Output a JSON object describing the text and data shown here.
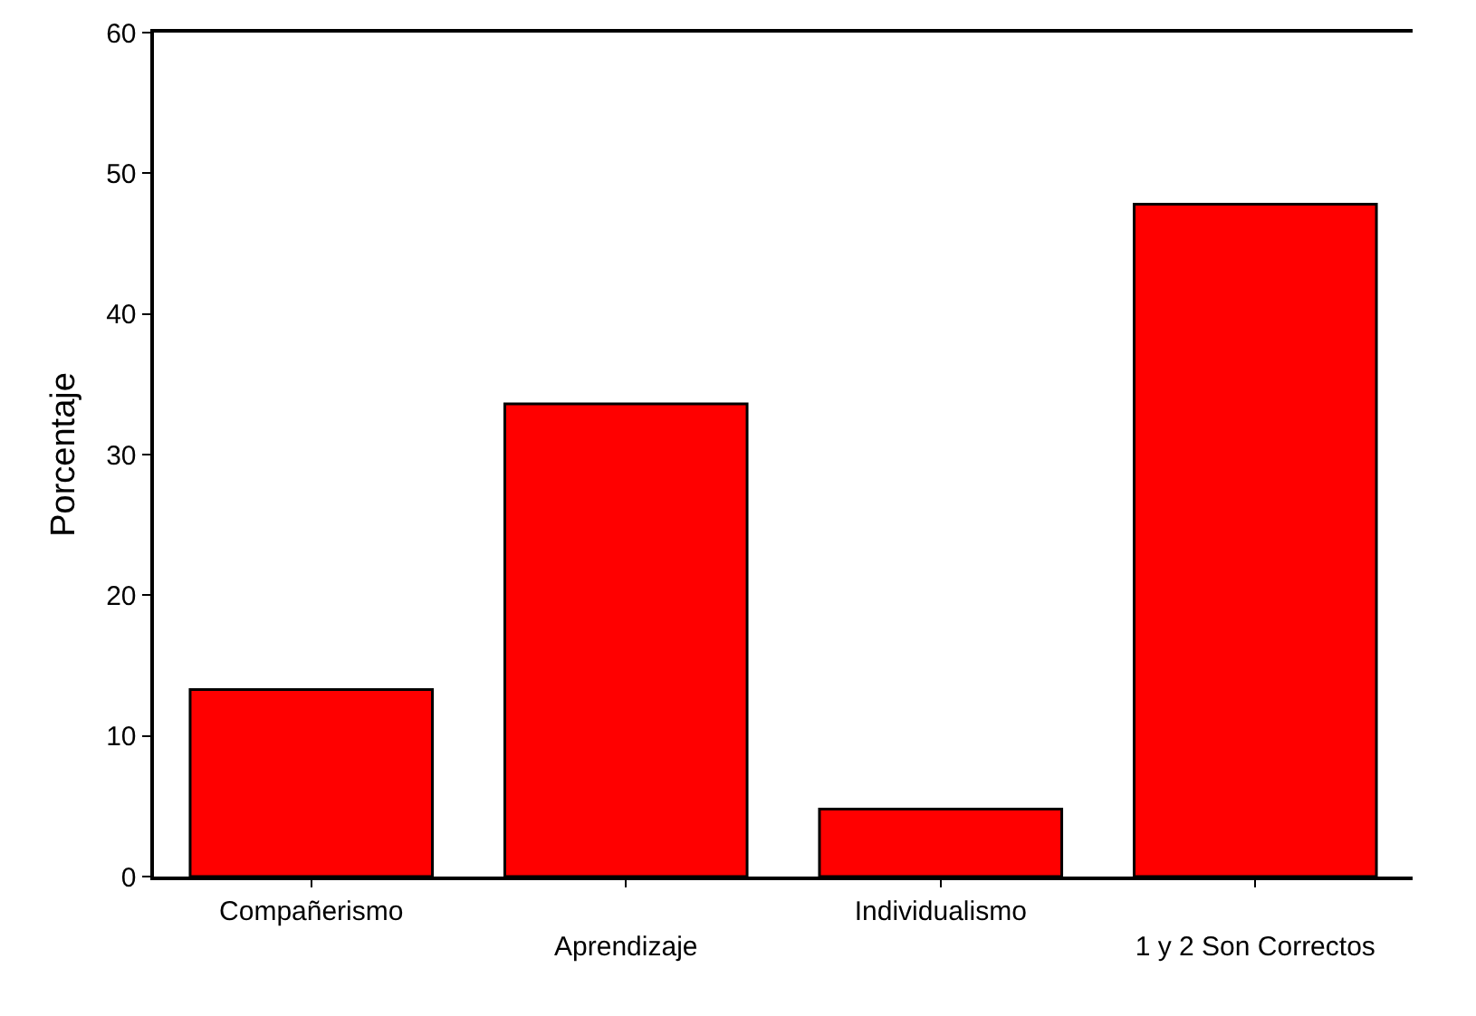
{
  "chart_data": {
    "type": "bar",
    "ylabel": "Porcentaje",
    "categories": [
      "Compañerismo",
      "Aprendizaje",
      "Individualismo",
      "1 y 2 Son Correctos"
    ],
    "values": [
      13.3,
      33.6,
      4.8,
      47.8
    ],
    "color": "#ff0000",
    "ylim": [
      0,
      60
    ],
    "yticks": [
      0,
      10,
      20,
      30,
      40,
      50,
      60
    ],
    "grid": false
  }
}
